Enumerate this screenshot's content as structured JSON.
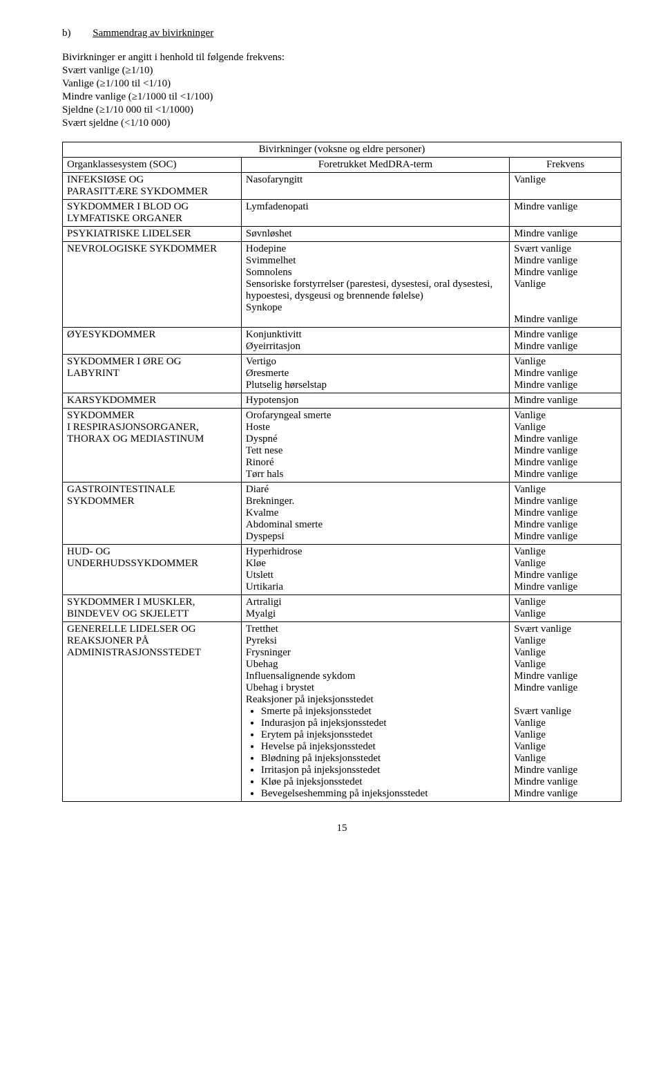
{
  "heading": {
    "letter": "b)",
    "title": "Sammendrag av bivirkninger"
  },
  "intro": {
    "line1": "Bivirkninger er angitt i henhold til følgende frekvens:",
    "line2": "Svært vanlige (≥1/10)",
    "line3": "Vanlige (≥1/100 til <1/10)",
    "line4": "Mindre vanlige (≥1/1000 til <1/100)",
    "line5": "Sjeldne (≥1/10 000 til <1/1000)",
    "line6": "Svært sjeldne (<1/10 000)"
  },
  "table": {
    "super_header": "Bivirkninger (voksne og eldre personer)",
    "columns": {
      "soc": "Organklassesystem (SOC)",
      "term": "Foretrukket MedDRA-term",
      "freq": "Frekvens"
    },
    "rows": [
      {
        "soc": "INFEKSIØSE OG\nPARASITTÆRE SYKDOMMER",
        "term": "Nasofaryngitt",
        "freq": "Vanlige"
      },
      {
        "soc": "SYKDOMMER I BLOD OG\nLYMFATISKE ORGANER",
        "term": "Lymfadenopati",
        "freq": "Mindre vanlige"
      },
      {
        "soc": "PSYKIATRISKE LIDELSER",
        "term": "Søvnløshet",
        "freq": "Mindre vanlige"
      },
      {
        "soc": "NEVROLOGISKE SYKDOMMER",
        "term": "Hodepine\nSvimmelhet\nSomnolens\nSensoriske forstyrrelser (parestesi, dysestesi, oral dysestesi, hypoestesi, dysgeusi og brennende følelse)\nSynkope",
        "freq": "Svært vanlige\nMindre vanlige\nMindre vanlige\nVanlige\n\n\nMindre vanlige"
      },
      {
        "soc": "ØYESYKDOMMER",
        "term": "Konjunktivitt\nØyeirritasjon",
        "freq": "Mindre vanlige\nMindre vanlige"
      },
      {
        "soc": "SYKDOMMER I ØRE OG\nLABYRINT",
        "term": "Vertigo\nØresmerte\nPlutselig hørselstap",
        "freq": "Vanlige\nMindre vanlige\nMindre vanlige"
      },
      {
        "soc": "KARSYKDOMMER",
        "term": "Hypotensjon",
        "freq": "Mindre vanlige"
      },
      {
        "soc": "SYKDOMMER\nI RESPIRASJONSORGANER,\nTHORAX OG MEDIASTINUM",
        "term": "Orofaryngeal smerte\nHoste\nDyspné\nTett nese\nRinoré\nTørr hals",
        "freq": "Vanlige\nVanlige\nMindre vanlige\nMindre vanlige\nMindre vanlige\nMindre vanlige"
      },
      {
        "soc": "GASTROINTESTINALE\nSYKDOMMER",
        "term": "Diaré\nBrekninger.\nKvalme\nAbdominal smerte\nDyspepsi",
        "freq": "Vanlige\nMindre vanlige\nMindre vanlige\nMindre vanlige\nMindre vanlige"
      },
      {
        "soc": "HUD- OG\nUNDERHUDSSYKDOMMER",
        "term": "Hyperhidrose\nKløe\nUtslett\nUrtikaria",
        "freq": "Vanlige\nVanlige\nMindre vanlige\nMindre vanlige"
      },
      {
        "soc": "SYKDOMMER I MUSKLER,\nBINDEVEV OG SKJELETT",
        "term": "Artraligi\nMyalgi",
        "freq": "Vanlige\nVanlige"
      }
    ],
    "last_row": {
      "soc": "GENERELLE LIDELSER OG\nREAKSJONER PÅ\nADMINISTRASJONSSTEDET",
      "term_pre": "Tretthet\nPyreksi\nFrysninger\nUbehag\nInfluensalignende sykdom\nUbehag i brystet\nReaksjoner på injeksjonsstedet",
      "bullets": [
        "Smerte på injeksjonsstedet",
        "Indurasjon på injeksjonsstedet",
        "Erytem på injeksjonsstedet",
        "Hevelse på injeksjonsstedet",
        "Blødning på injeksjonsstedet",
        "Irritasjon på injeksjonsstedet",
        "Kløe på injeksjonsstedet",
        "Bevegelseshemming på injeksjonsstedet"
      ],
      "freq": "Svært vanlige\nVanlige\nVanlige\nVanlige\nMindre vanlige\nMindre vanlige\n\nSvært vanlige\nVanlige\nVanlige\nVanlige\nVanlige\nMindre vanlige\nMindre vanlige\nMindre vanlige"
    }
  },
  "page_number": "15"
}
